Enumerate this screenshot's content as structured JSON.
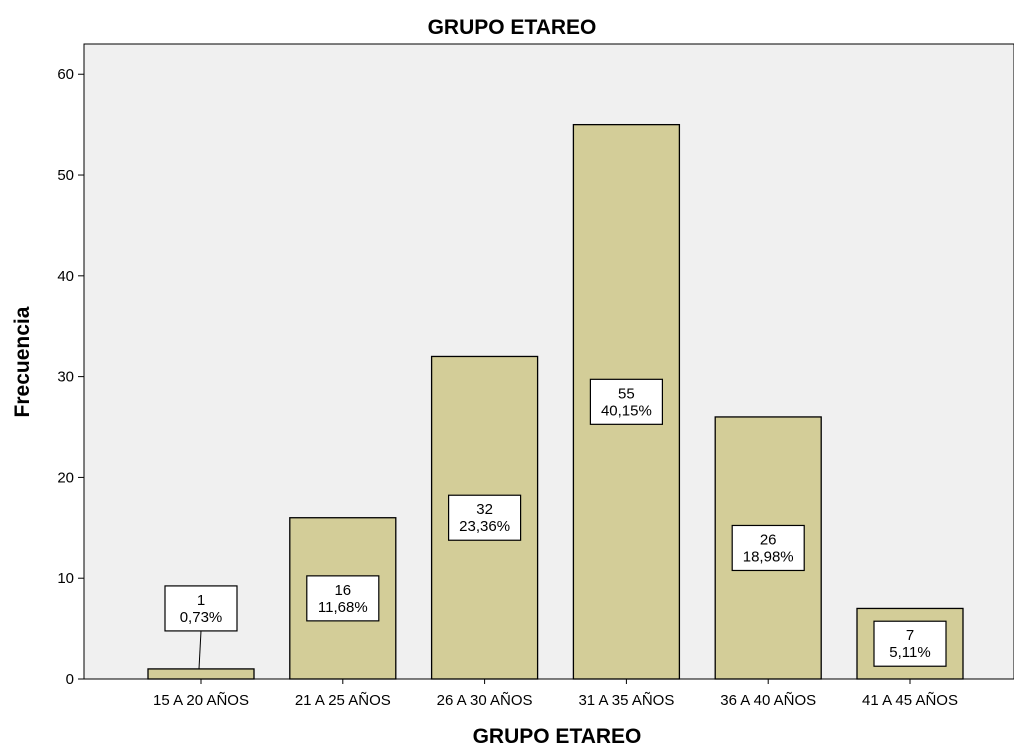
{
  "chart_data": {
    "type": "bar",
    "title": "GRUPO ETAREO",
    "xlabel": "GRUPO ETAREO",
    "ylabel": "Frecuencia",
    "ylim": [
      0,
      63
    ],
    "yticks": [
      0,
      10,
      20,
      30,
      40,
      50,
      60
    ],
    "categories": [
      "15 A 20 AÑOS",
      "21 A 25 AÑOS",
      "26 A 30 AÑOS",
      "31 A 35 AÑOS",
      "36 A 40 AÑOS",
      "41 A 45 AÑOS"
    ],
    "values": [
      1,
      16,
      32,
      55,
      26,
      7
    ],
    "data_labels": [
      {
        "count": "1",
        "percent": "0,73%"
      },
      {
        "count": "16",
        "percent": "11,68%"
      },
      {
        "count": "32",
        "percent": "23,36%"
      },
      {
        "count": "55",
        "percent": "40,15%"
      },
      {
        "count": "26",
        "percent": "18,98%"
      },
      {
        "count": "7",
        "percent": "5,11%"
      }
    ],
    "grid": false,
    "legend": "none",
    "colors": {
      "bar_fill": "#d3cd98",
      "bar_stroke": "#000000",
      "plot_background": "#f0f0f0",
      "label_box": "#ffffff"
    }
  }
}
